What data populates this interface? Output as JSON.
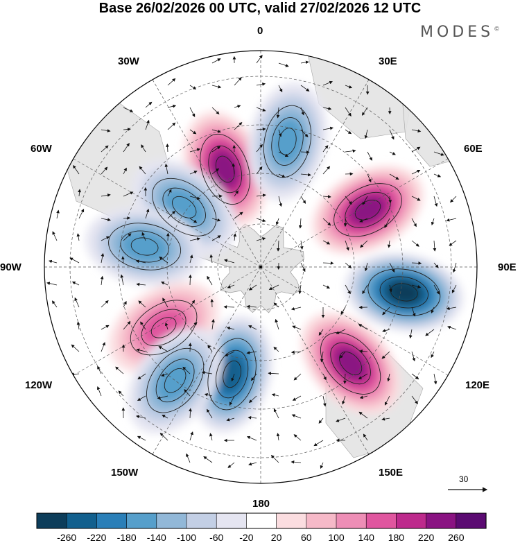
{
  "title": "Base 26/02/2026 00 UTC, valid 27/02/2026 12 UTC",
  "brand": {
    "name": "MODES",
    "mark": "©"
  },
  "longitude_labels": {
    "n0": "0",
    "n30e": "30E",
    "n60e": "60E",
    "n90e": "90E",
    "n120e": "120E",
    "n150e": "150E",
    "n180": "180",
    "n150w": "150W",
    "n120w": "120W",
    "n90w": "90W",
    "n60w": "60W",
    "n30w": "30W"
  },
  "reference_vector": {
    "label": "30"
  },
  "colorbar": {
    "ticks": [
      "-260",
      "-220",
      "-180",
      "-140",
      "-100",
      "-60",
      "-20",
      "20",
      "60",
      "100",
      "140",
      "180",
      "220",
      "260"
    ],
    "colors": [
      "#0d3d5a",
      "#12608e",
      "#2a7fb8",
      "#569fcb",
      "#92b8d8",
      "#c3cfe5",
      "#e5e5f1",
      "#ffffff",
      "#fbdde0",
      "#f6b9c8",
      "#ee8eb6",
      "#e0569f",
      "#bd2a8c",
      "#8a1382",
      "#5b0b72"
    ]
  },
  "colors": {
    "land": "#e4e4e4",
    "coast": "#9a9a9a",
    "grid": "#555555",
    "contour": "#222222"
  },
  "chart_data": {
    "type": "map",
    "projection": "south polar stereographic",
    "field": "anomaly (shaded, labelled contours) with wind vectors",
    "levels": [
      -260,
      -220,
      -180,
      -140,
      -100,
      -60,
      -20,
      20,
      60,
      100,
      140,
      180,
      220,
      260
    ],
    "anomaly_centres": [
      {
        "lon": -20,
        "sign": "positive",
        "peak": 250
      },
      {
        "lon": 12,
        "sign": "negative",
        "peak": -150
      },
      {
        "lon": -52,
        "sign": "negative",
        "peak": -150
      },
      {
        "lon": 62,
        "sign": "positive",
        "peak": 230
      },
      {
        "lon": -80,
        "sign": "negative",
        "peak": -140
      },
      {
        "lon": 100,
        "sign": "negative",
        "peak": -270
      },
      {
        "lon": 137,
        "sign": "positive",
        "peak": 240
      },
      {
        "lon": -122,
        "sign": "positive",
        "peak": 170
      },
      {
        "lon": -165,
        "sign": "negative",
        "peak": -230
      },
      {
        "lon": -143,
        "sign": "negative",
        "peak": -140
      }
    ],
    "reference_vector_speed": 30
  }
}
